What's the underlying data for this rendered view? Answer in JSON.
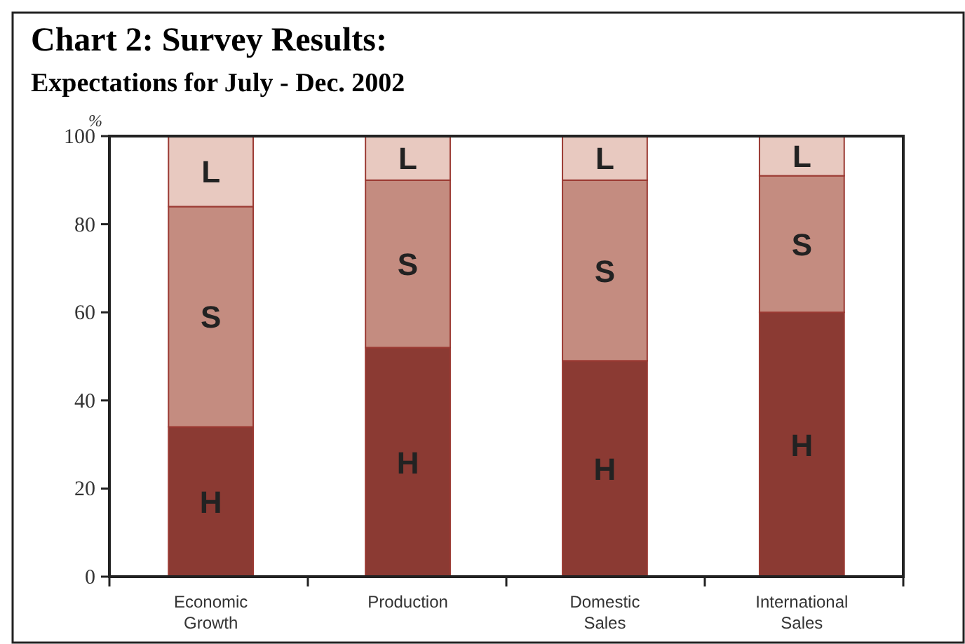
{
  "chart_data": {
    "type": "bar",
    "title": "Chart 2: Survey Results:",
    "subtitle": "Expectations for July - Dec. 2002",
    "ylabel": "%",
    "categories": [
      "Economic Growth",
      "Production",
      "Domestic Sales",
      "International Sales"
    ],
    "stacked": true,
    "ylim": [
      0,
      100
    ],
    "yticks": [
      0,
      20,
      40,
      60,
      80,
      100
    ],
    "grid": false,
    "series": [
      {
        "name": "H",
        "color": "#8b3a33",
        "values": [
          34,
          52,
          49,
          60
        ]
      },
      {
        "name": "S",
        "color": "#c48c80",
        "values": [
          50,
          38,
          41,
          31
        ]
      },
      {
        "name": "L",
        "color": "#e8c9c0",
        "values": [
          16,
          10,
          10,
          9
        ]
      }
    ]
  }
}
